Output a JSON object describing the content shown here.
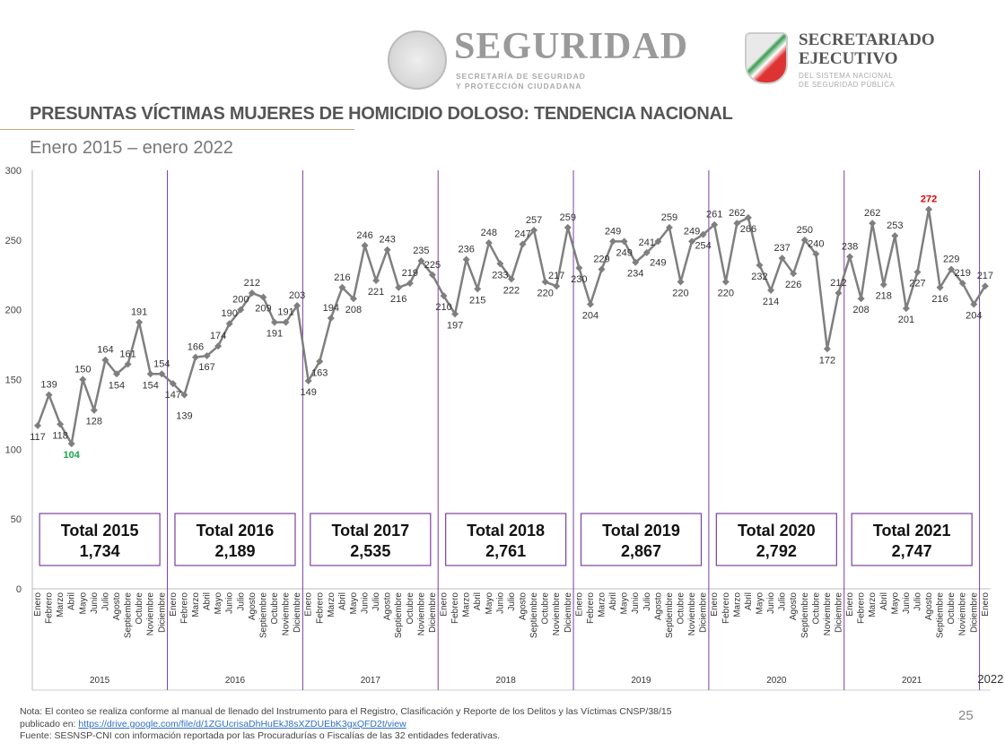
{
  "header": {
    "logo_seguridad": "SEGURIDAD",
    "logo_seguridad_sub": [
      "SECRETARÍA DE SEGURIDAD",
      "Y PROTECCIÓN CIUDADANA"
    ],
    "logo_secretariado": [
      "SECRETARIADO",
      "EJECUTIVO"
    ],
    "logo_secretariado_sub": [
      "DEL SISTEMA NACIONAL",
      "DE SEGURIDAD PÚBLICA"
    ]
  },
  "chart_data": {
    "type": "line",
    "title": "PRESUNTAS VÍCTIMAS MUJERES DE HOMICIDIO DOLOSO: TENDENCIA NACIONAL",
    "subtitle": "Enero 2015 – enero 2022",
    "ylim": [
      0,
      300
    ],
    "yticks": [
      "0",
      "50",
      "100",
      "150",
      "200",
      "250",
      "300"
    ],
    "months": [
      "Enero",
      "Febrero",
      "Marzo",
      "Abril",
      "Mayo",
      "Junio",
      "Julio",
      "Agosto",
      "Septiembre",
      "Octubre",
      "Noviembre",
      "Diciembre"
    ],
    "years": [
      "2015",
      "2016",
      "2017",
      "2018",
      "2019",
      "2020",
      "2021",
      "2022"
    ],
    "values": [
      117,
      139,
      118,
      104,
      150,
      128,
      164,
      154,
      161,
      191,
      154,
      154,
      147,
      139,
      166,
      167,
      174,
      190,
      200,
      212,
      209,
      191,
      191,
      203,
      149,
      163,
      194,
      216,
      208,
      246,
      221,
      243,
      216,
      219,
      235,
      225,
      210,
      197,
      236,
      215,
      248,
      233,
      222,
      247,
      257,
      220,
      217,
      259,
      230,
      204,
      229,
      249,
      249,
      234,
      241,
      249,
      259,
      220,
      249,
      254,
      261,
      220,
      262,
      266,
      232,
      214,
      237,
      226,
      250,
      240,
      172,
      212,
      238,
      208,
      262,
      218,
      253,
      201,
      227,
      272,
      216,
      229,
      219,
      204,
      217
    ],
    "min_label_color": "#1aa84a",
    "max_label_color": "#e00000",
    "line_color": "#7f7f7f",
    "separator_color": "#7b3fa0",
    "totals": [
      {
        "label": "Total 2015",
        "value": "1,734"
      },
      {
        "label": "Total 2016",
        "value": "2,189"
      },
      {
        "label": "Total 2017",
        "value": "2,535"
      },
      {
        "label": "Total 2018",
        "value": "2,761"
      },
      {
        "label": "Total 2019",
        "value": "2,867"
      },
      {
        "label": "Total 2020",
        "value": "2,792"
      },
      {
        "label": "Total 2021",
        "value": "2,747"
      }
    ]
  },
  "footer": {
    "note": "Nota: El conteo se realiza conforme al manual de llenado del Instrumento para el Registro, Clasificación y Reporte de los Delitos y las Víctimas CNSP/38/15",
    "published_prefix": "publicado en: ",
    "link": "https://drive.google.com/file/d/1ZGUcrisaDhHuEkJ8sXZDUEbK3gxQFD2t/view",
    "source": "Fuente: SESNSP-CNI con información reportada por las Procuradurías o Fiscalías de las 32 entidades federativas.",
    "page_number": "25"
  }
}
